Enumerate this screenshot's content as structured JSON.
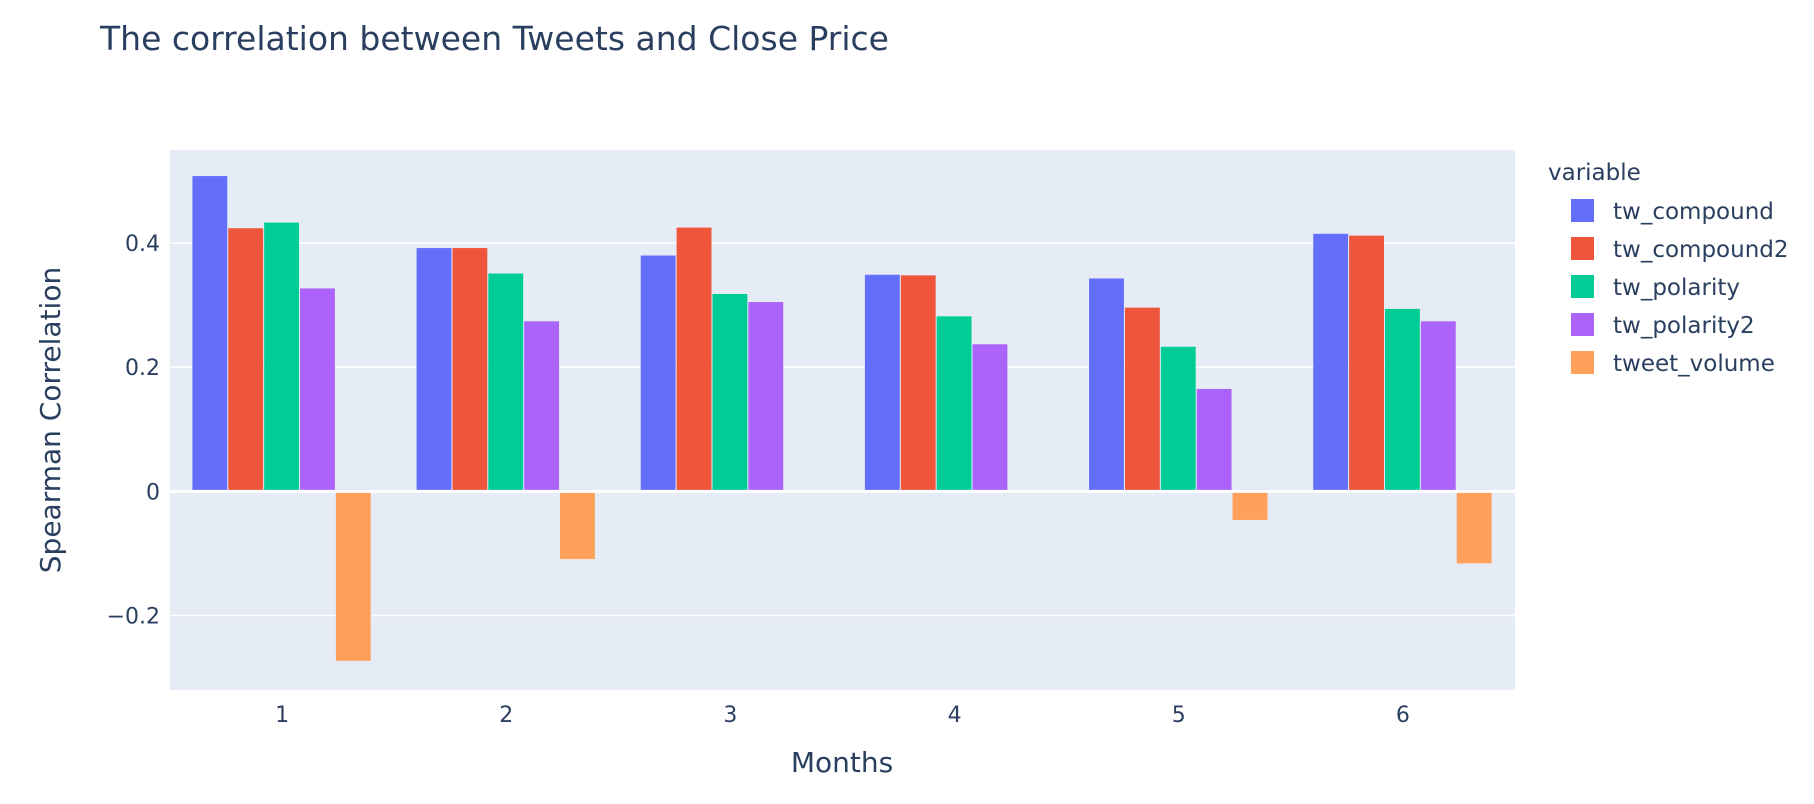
{
  "chart_data": {
    "type": "bar",
    "title": "The correlation between Tweets and Close Price",
    "xlabel": "Months",
    "ylabel": "Spearman Correlation",
    "categories": [
      "1",
      "2",
      "3",
      "4",
      "5",
      "6"
    ],
    "ylim": [
      -0.32,
      0.55
    ],
    "yticks": [
      -0.2,
      0,
      0.2,
      0.4
    ],
    "ytick_labels": [
      "−0.2",
      "0",
      "0.2",
      "0.4"
    ],
    "grid": true,
    "legend_title": "variable",
    "legend_position": "right",
    "background": "#e5ecf6",
    "series": [
      {
        "name": "tw_compound",
        "color": "#636efa",
        "values": [
          0.508,
          0.392,
          0.38,
          0.349,
          0.343,
          0.415
        ]
      },
      {
        "name": "tw_compound2",
        "color": "#ef553b",
        "values": [
          0.424,
          0.392,
          0.425,
          0.348,
          0.296,
          0.412
        ]
      },
      {
        "name": "tw_polarity",
        "color": "#00cc96",
        "values": [
          0.433,
          0.351,
          0.318,
          0.282,
          0.233,
          0.294
        ]
      },
      {
        "name": "tw_polarity2",
        "color": "#ab63fa",
        "values": [
          0.327,
          0.274,
          0.305,
          0.237,
          0.165,
          0.274
        ]
      },
      {
        "name": "tweet_volume",
        "color": "#ffa15a",
        "values": [
          -0.273,
          -0.109,
          -0.002,
          0.002,
          -0.046,
          -0.116
        ]
      }
    ]
  }
}
